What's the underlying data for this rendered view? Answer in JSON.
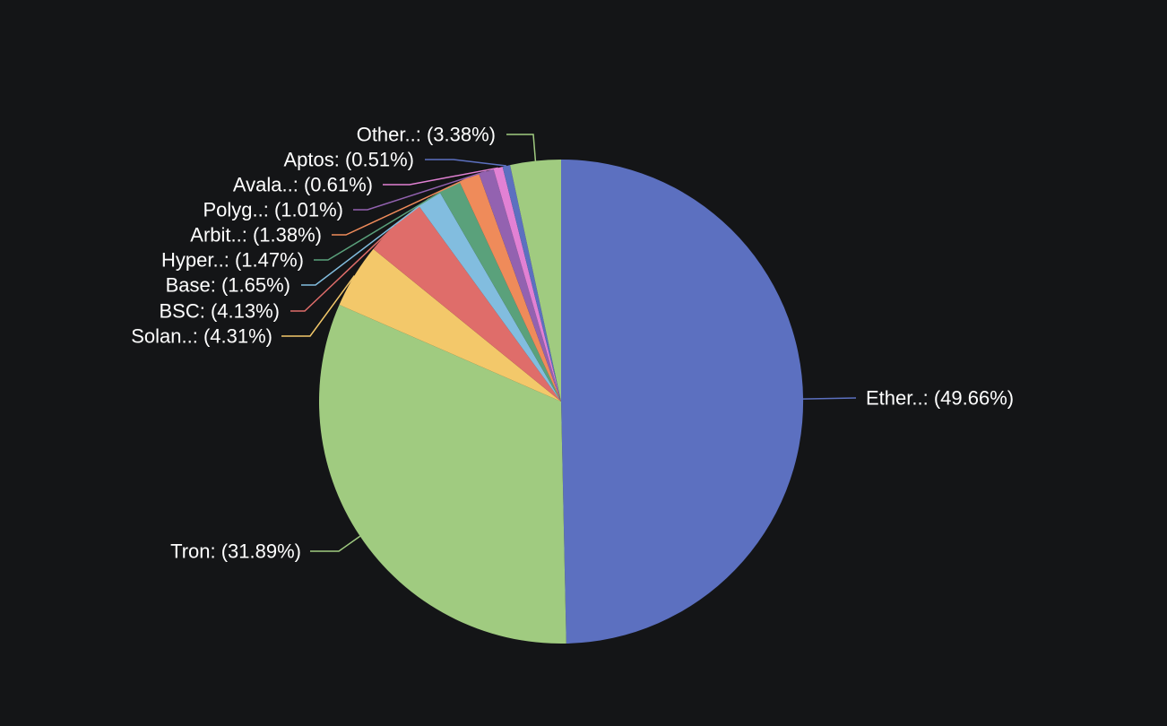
{
  "chart_data": {
    "type": "pie",
    "slices": [
      {
        "label": "Ether..: (49.66%)",
        "value": 49.66,
        "color": "#5c70c0"
      },
      {
        "label": "Tron: (31.89%)",
        "value": 31.89,
        "color": "#a0cb80"
      },
      {
        "label": "Solan..: (4.31%)",
        "value": 4.31,
        "color": "#f3c86a"
      },
      {
        "label": "BSC: (4.13%)",
        "value": 4.13,
        "color": "#df6d6a"
      },
      {
        "label": "Base: (1.65%)",
        "value": 1.65,
        "color": "#82bddf"
      },
      {
        "label": "Hyper..: (1.47%)",
        "value": 1.47,
        "color": "#5aa17b"
      },
      {
        "label": "Arbit..: (1.38%)",
        "value": 1.38,
        "color": "#ef8b5a"
      },
      {
        "label": "Polyg..: (1.01%)",
        "value": 1.01,
        "color": "#9362b0"
      },
      {
        "label": "Avala..: (0.61%)",
        "value": 0.61,
        "color": "#e281d4"
      },
      {
        "label": "Aptos: (0.51%)",
        "value": 0.51,
        "color": "#5c70c0"
      },
      {
        "label": "Other..: (3.38%)",
        "value": 3.38,
        "color": "#a0cb80"
      }
    ]
  }
}
